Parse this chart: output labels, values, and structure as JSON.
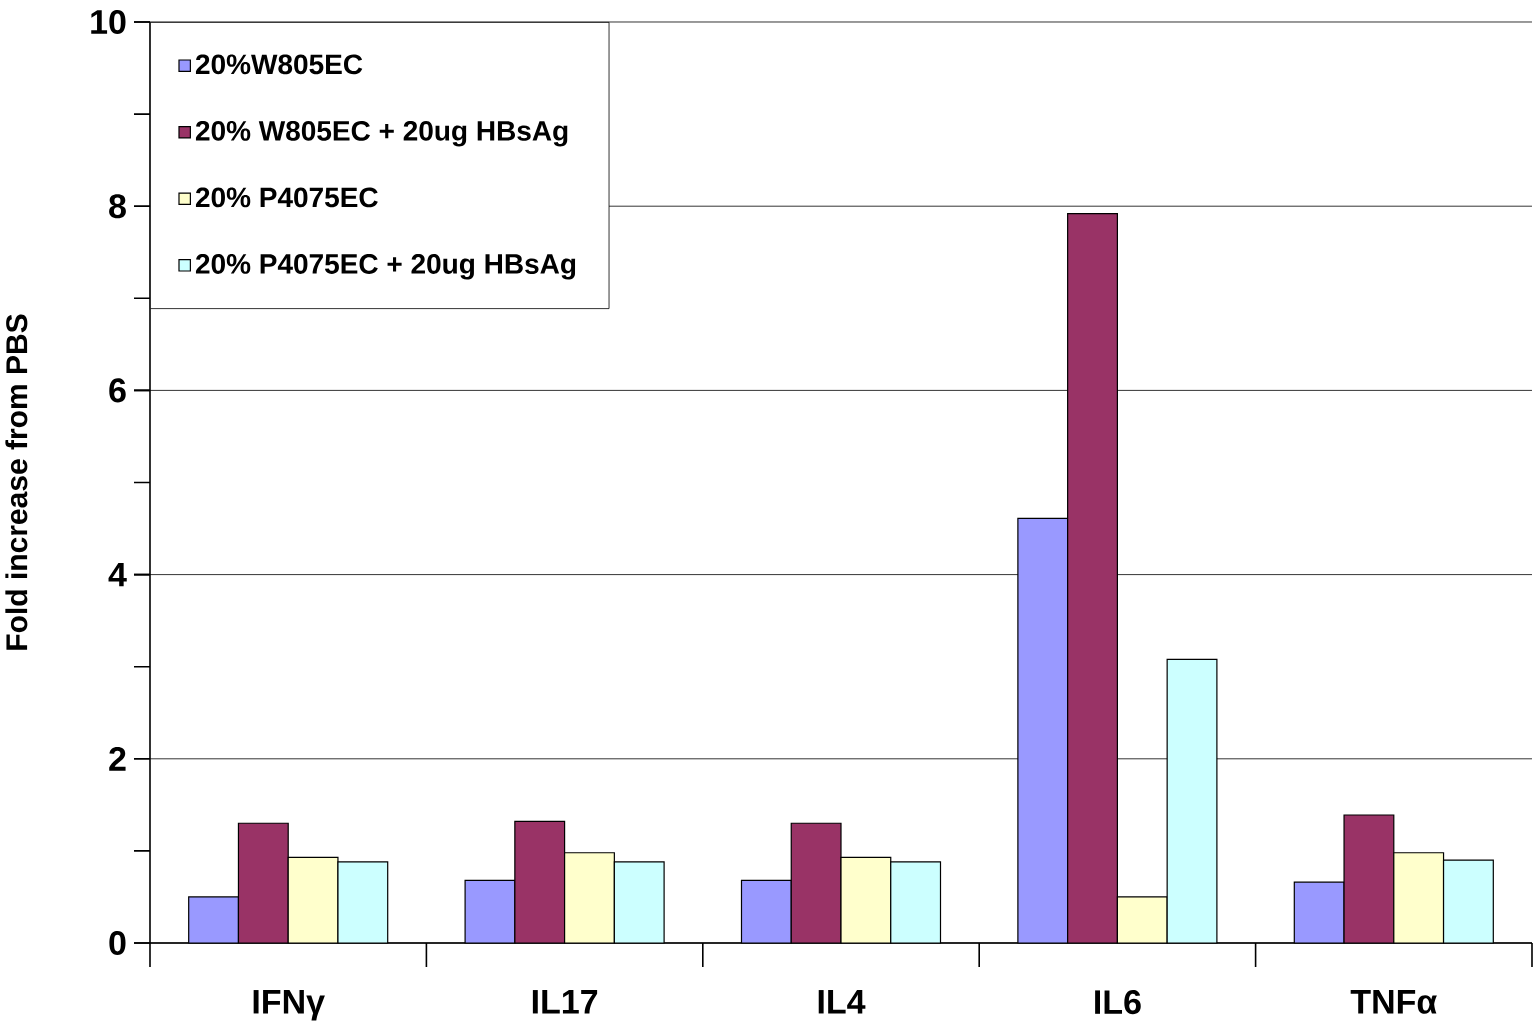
{
  "chart_data": {
    "type": "bar",
    "ylabel": "Fold increase from PBS",
    "categories": [
      "IFNγ",
      "IL17",
      "IL4",
      "IL6",
      "TNFα"
    ],
    "series": [
      {
        "name": "20%W805EC",
        "color": "#9999ff",
        "values": [
          0.5,
          0.68,
          0.68,
          4.61,
          0.66
        ]
      },
      {
        "name": "20% W805EC + 20ug HBsAg",
        "color": "#993366",
        "values": [
          1.3,
          1.32,
          1.3,
          7.92,
          1.39
        ]
      },
      {
        "name": "20% P4075EC",
        "color": "#ffffcc",
        "values": [
          0.93,
          0.98,
          0.93,
          0.5,
          0.98
        ]
      },
      {
        "name": "20% P4075EC + 20ug HBsAg",
        "color": "#ccffff",
        "values": [
          0.88,
          0.88,
          0.88,
          3.08,
          0.9
        ]
      }
    ],
    "ylim": [
      0,
      10
    ],
    "yticks": [
      0,
      {
        "value": 1,
        "label": null
      },
      2,
      {
        "value": 3,
        "label": null
      },
      4,
      {
        "value": 5,
        "label": null
      },
      6,
      {
        "value": 7,
        "label": null
      },
      8,
      {
        "value": 9,
        "label": null
      },
      10
    ],
    "grid": "y",
    "legend": "top left"
  }
}
